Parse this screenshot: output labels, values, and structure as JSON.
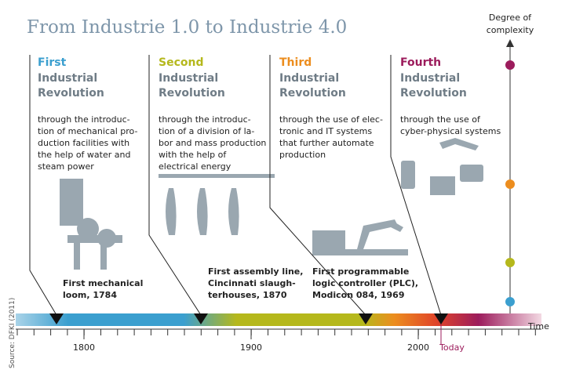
{
  "title": "From Industrie 1.0 to Industrie 4.0",
  "complexity_axis_label": [
    "Degree of",
    "complexity"
  ],
  "revolutions": [
    {
      "ordinal": "First",
      "color": "#3b9fcf",
      "name": [
        "Industrial",
        "Revolution"
      ],
      "description": [
        "through the introduc-",
        "tion of mechanical pro-",
        "duction facilities with",
        "the help of water and",
        "steam power"
      ],
      "milestone": [
        "First mechanical",
        "loom, 1784"
      ]
    },
    {
      "ordinal": "Second",
      "color": "#b5b81c",
      "name": [
        "Industrial",
        "Revolution"
      ],
      "description": [
        "through the introduc-",
        "tion of a division of la-",
        "bor and mass production",
        "with the help of",
        "electrical energy"
      ],
      "milestone": [
        "First assembly line,",
        "Cincinnati slaugh-",
        "terhouses, 1870"
      ]
    },
    {
      "ordinal": "Third",
      "color": "#ec8d1e",
      "name": [
        "Industrial",
        "Revolution"
      ],
      "description": [
        "through the use of elec-",
        "tronic and IT systems",
        "that further automate",
        "production"
      ],
      "milestone": [
        "First programmable",
        "logic controller (PLC),",
        "Modicon 084, 1969"
      ]
    },
    {
      "ordinal": "Fourth",
      "color": "#9c1c5c",
      "name": [
        "Industrial",
        "Revolution"
      ],
      "description": [
        "through the use of",
        "cyber-physical systems"
      ],
      "milestone": []
    }
  ],
  "time_axis": {
    "label": "Time",
    "ticks": [
      "1800",
      "1900",
      "2000"
    ],
    "today": "Today"
  },
  "source": "Source: DFKI (2011)"
}
